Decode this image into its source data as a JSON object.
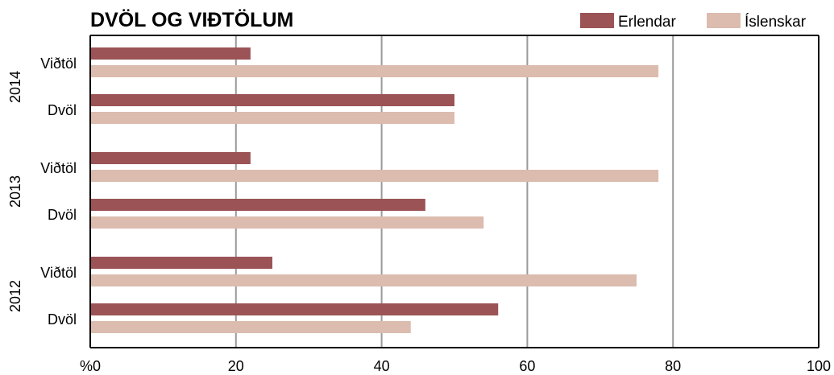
{
  "chart_data": {
    "type": "bar",
    "orientation": "horizontal",
    "title": "DVÖL OG VIÐTÖLUM",
    "xlim": [
      0,
      100
    ],
    "x_ticks": [
      0,
      20,
      40,
      60,
      80,
      100
    ],
    "x_tick_labels": [
      "%0",
      "20",
      "40",
      "60",
      "80",
      "100"
    ],
    "grid": true,
    "legend_position": "top-right",
    "colors": {
      "Erlendar": "#9b5356",
      "Íslenskar": "#dbbcae"
    },
    "series": [
      {
        "name": "Erlendar",
        "color": "#9b5356"
      },
      {
        "name": "Íslenskar",
        "color": "#dbbcae"
      }
    ],
    "groups": [
      {
        "year": "2014",
        "categories": [
          {
            "label": "Viðtöl",
            "values": [
              22,
              78
            ]
          },
          {
            "label": "Dvöl",
            "values": [
              50,
              50
            ]
          }
        ]
      },
      {
        "year": "2013",
        "categories": [
          {
            "label": "Viðtöl",
            "values": [
              22,
              78
            ]
          },
          {
            "label": "Dvöl",
            "values": [
              46,
              54
            ]
          }
        ]
      },
      {
        "year": "2012",
        "categories": [
          {
            "label": "Viðtöl",
            "values": [
              25,
              75
            ]
          },
          {
            "label": "Dvöl",
            "values": [
              56,
              44
            ]
          }
        ]
      }
    ]
  }
}
